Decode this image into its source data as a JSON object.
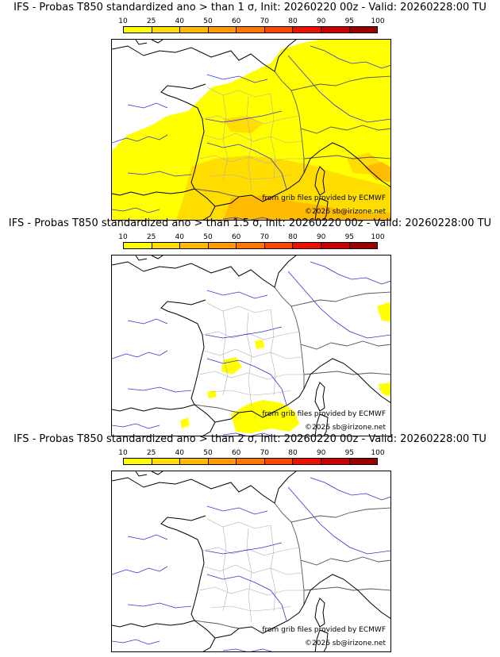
{
  "legend": {
    "ticks": [
      "10",
      "25",
      "40",
      "50",
      "60",
      "70",
      "80",
      "90",
      "95",
      "100"
    ],
    "colors": [
      "#ffff00",
      "#ffdd00",
      "#ffbb00",
      "#ff9900",
      "#ff7700",
      "#ff4400",
      "#ee1100",
      "#cc0000",
      "#990000",
      "#550000"
    ]
  },
  "panels": [
    {
      "title": "IFS - Probas T850  standardized ano > than 1 σ, Init: 20260220 00z - Valid: 20260228:00 TU"
    },
    {
      "title": "IFS - Probas T850  standardized ano > than 1.5 σ, Init: 20260220 00z - Valid: 20260228:00 TU"
    },
    {
      "title": "IFS - Probas T850  standardized ano > than 2 σ, Init: 20260220 00z - Valid: 20260228:00 TU"
    }
  ],
  "credits": {
    "source": "from grib files provided by ECMWF",
    "copyright": "©2026 sb@irizone.net"
  }
}
